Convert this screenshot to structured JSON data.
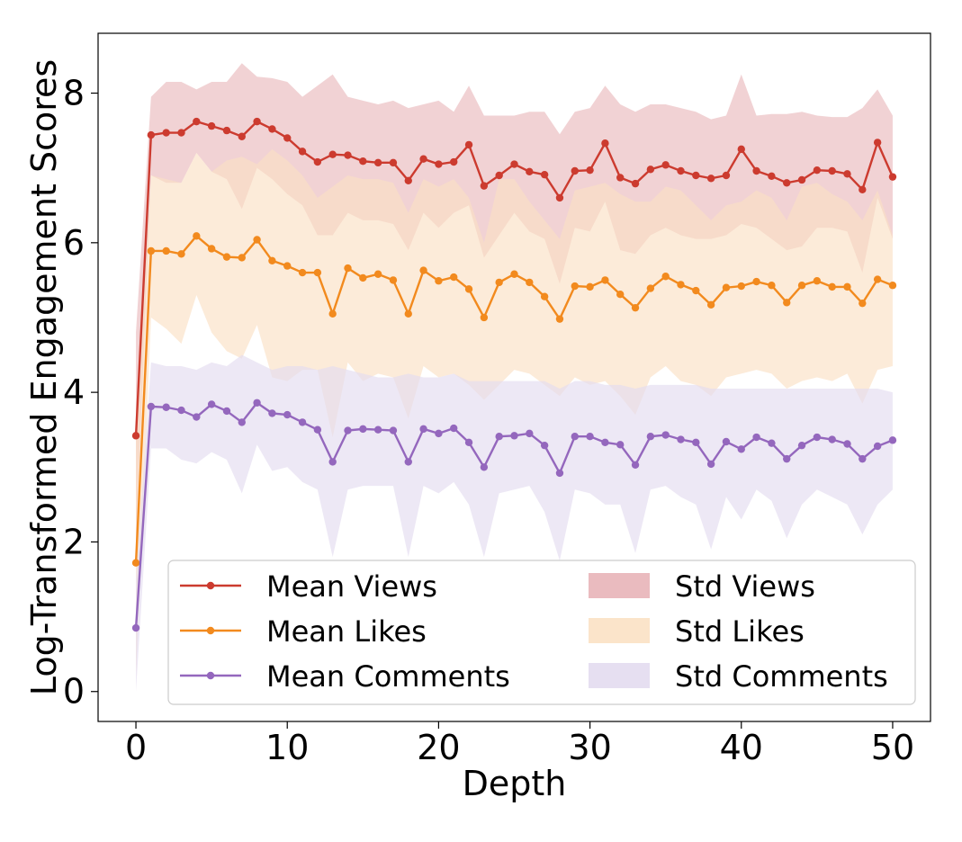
{
  "chart_data": {
    "type": "line",
    "xlabel": "Depth",
    "ylabel": "Log-Transformed Engagement Scores",
    "xlim": [
      -2.5,
      52.5
    ],
    "ylim": [
      -0.4,
      8.8
    ],
    "xticks": [
      0,
      10,
      20,
      30,
      40,
      50
    ],
    "yticks": [
      0,
      2,
      4,
      6,
      8
    ],
    "x": [
      0,
      1,
      2,
      3,
      4,
      5,
      6,
      7,
      8,
      9,
      10,
      11,
      12,
      13,
      14,
      15,
      16,
      17,
      18,
      19,
      20,
      21,
      22,
      23,
      24,
      25,
      26,
      27,
      28,
      29,
      30,
      31,
      32,
      33,
      34,
      35,
      36,
      37,
      38,
      39,
      40,
      41,
      42,
      43,
      44,
      45,
      46,
      47,
      48,
      49,
      50
    ],
    "series": [
      {
        "name": "Mean Views",
        "std_name": "Std Views",
        "color": "#cc3b2f",
        "band_color": "#e8b4b8",
        "mean": [
          3.42,
          7.44,
          7.47,
          7.47,
          7.62,
          7.56,
          7.5,
          7.42,
          7.62,
          7.52,
          7.4,
          7.22,
          7.08,
          7.18,
          7.17,
          7.09,
          7.07,
          7.07,
          6.83,
          7.12,
          7.05,
          7.08,
          7.31,
          6.76,
          6.9,
          7.05,
          6.95,
          6.91,
          6.6,
          6.96,
          6.97,
          7.33,
          6.87,
          6.79,
          6.98,
          7.04,
          6.96,
          6.9,
          6.86,
          6.9,
          7.25,
          6.96,
          6.89,
          6.8,
          6.84,
          6.97,
          6.96,
          6.92,
          6.71,
          7.34,
          6.88
        ],
        "upper": [
          4.8,
          7.95,
          8.15,
          8.15,
          8.05,
          8.15,
          8.15,
          8.4,
          8.22,
          8.2,
          8.15,
          7.95,
          8.1,
          8.25,
          7.95,
          7.9,
          7.85,
          7.9,
          7.8,
          7.85,
          7.9,
          7.75,
          8.1,
          7.7,
          7.7,
          7.7,
          7.75,
          7.75,
          7.45,
          7.75,
          7.8,
          8.1,
          7.85,
          7.75,
          7.85,
          7.85,
          7.8,
          7.75,
          7.65,
          7.7,
          8.25,
          7.7,
          7.72,
          7.72,
          7.75,
          7.7,
          7.68,
          7.68,
          7.8,
          8.05,
          7.7
        ],
        "lower": [
          2.0,
          6.9,
          6.8,
          6.8,
          7.2,
          6.95,
          6.85,
          6.45,
          7.0,
          6.85,
          6.65,
          6.5,
          6.1,
          6.1,
          6.4,
          6.3,
          6.3,
          6.25,
          5.9,
          6.4,
          6.2,
          6.4,
          6.5,
          5.8,
          6.1,
          6.4,
          6.15,
          6.05,
          5.45,
          6.2,
          6.15,
          6.55,
          5.9,
          5.85,
          6.1,
          6.2,
          6.1,
          6.05,
          6.05,
          6.1,
          6.25,
          6.2,
          6.05,
          5.9,
          5.95,
          6.2,
          6.2,
          6.15,
          5.6,
          6.6,
          6.05
        ]
      },
      {
        "name": "Mean Likes",
        "std_name": "Std Likes",
        "color": "#f28a1e",
        "band_color": "#fbe1c4",
        "mean": [
          1.72,
          5.89,
          5.89,
          5.85,
          6.09,
          5.92,
          5.81,
          5.8,
          6.04,
          5.76,
          5.69,
          5.6,
          5.6,
          5.05,
          5.66,
          5.53,
          5.58,
          5.5,
          5.05,
          5.63,
          5.49,
          5.54,
          5.38,
          5.0,
          5.47,
          5.58,
          5.47,
          5.28,
          4.98,
          5.42,
          5.41,
          5.5,
          5.31,
          5.13,
          5.39,
          5.55,
          5.44,
          5.36,
          5.17,
          5.4,
          5.42,
          5.48,
          5.43,
          5.2,
          5.43,
          5.49,
          5.41,
          5.41,
          5.19,
          5.51,
          5.43
        ],
        "upper": [
          3.5,
          6.9,
          6.85,
          6.8,
          7.2,
          6.95,
          7.1,
          7.15,
          7.05,
          7.25,
          7.1,
          6.9,
          6.6,
          6.75,
          6.9,
          6.85,
          6.85,
          6.8,
          6.4,
          6.85,
          6.75,
          6.85,
          6.6,
          6.0,
          6.85,
          6.85,
          6.55,
          6.3,
          6.05,
          6.7,
          6.75,
          6.8,
          6.65,
          6.55,
          6.55,
          6.75,
          6.7,
          6.5,
          6.3,
          6.5,
          6.55,
          6.7,
          6.6,
          6.3,
          6.75,
          6.8,
          6.65,
          6.55,
          6.3,
          6.7,
          6.1
        ],
        "lower": [
          0.2,
          5.0,
          4.85,
          4.65,
          5.3,
          4.8,
          4.55,
          4.45,
          4.9,
          4.2,
          4.15,
          4.3,
          4.3,
          3.4,
          4.4,
          4.15,
          4.25,
          4.2,
          3.65,
          4.35,
          4.2,
          4.25,
          4.1,
          3.9,
          4.1,
          4.3,
          4.25,
          4.1,
          3.95,
          4.2,
          4.1,
          4.15,
          3.95,
          3.7,
          4.2,
          4.35,
          4.15,
          4.1,
          3.95,
          4.2,
          4.25,
          4.3,
          4.25,
          4.05,
          4.15,
          4.2,
          4.15,
          4.25,
          3.85,
          4.3,
          4.35
        ]
      },
      {
        "name": "Mean Comments",
        "std_name": "Std Comments",
        "color": "#9467bd",
        "band_color": "#e3dcef",
        "mean": [
          0.85,
          3.81,
          3.8,
          3.76,
          3.67,
          3.84,
          3.75,
          3.6,
          3.86,
          3.72,
          3.7,
          3.6,
          3.5,
          3.07,
          3.49,
          3.51,
          3.5,
          3.49,
          3.07,
          3.51,
          3.45,
          3.52,
          3.33,
          3.0,
          3.41,
          3.42,
          3.45,
          3.29,
          2.92,
          3.41,
          3.41,
          3.33,
          3.3,
          3.03,
          3.41,
          3.43,
          3.37,
          3.33,
          3.04,
          3.34,
          3.24,
          3.4,
          3.32,
          3.11,
          3.29,
          3.4,
          3.37,
          3.31,
          3.11,
          3.28,
          3.36
        ],
        "upper": [
          1.5,
          4.4,
          4.35,
          4.35,
          4.3,
          4.4,
          4.35,
          4.5,
          4.4,
          4.3,
          4.35,
          4.35,
          4.3,
          4.35,
          4.3,
          4.25,
          4.2,
          4.2,
          4.25,
          4.2,
          4.2,
          4.25,
          4.15,
          4.15,
          4.15,
          4.15,
          4.15,
          4.15,
          4.05,
          4.15,
          4.15,
          4.1,
          4.1,
          4.05,
          4.1,
          4.1,
          4.1,
          4.1,
          4.05,
          4.05,
          4.05,
          4.05,
          4.05,
          4.05,
          4.05,
          4.05,
          4.05,
          4.05,
          4.05,
          4.05,
          4.0
        ],
        "lower": [
          0.0,
          3.25,
          3.25,
          3.1,
          3.05,
          3.2,
          3.1,
          2.65,
          3.3,
          2.95,
          3.0,
          2.8,
          2.7,
          1.8,
          2.7,
          2.75,
          2.75,
          2.75,
          1.8,
          2.75,
          2.65,
          2.8,
          2.5,
          1.8,
          2.65,
          2.7,
          2.75,
          2.4,
          1.75,
          2.7,
          2.65,
          2.5,
          2.5,
          1.85,
          2.7,
          2.75,
          2.6,
          2.5,
          1.9,
          2.6,
          2.3,
          2.7,
          2.55,
          2.05,
          2.5,
          2.7,
          2.6,
          2.5,
          2.1,
          2.5,
          2.7
        ]
      }
    ]
  }
}
